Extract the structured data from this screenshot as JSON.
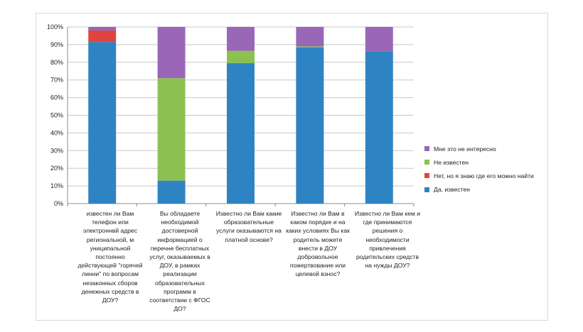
{
  "chart_data": {
    "type": "bar",
    "stacked": true,
    "percent": true,
    "categories": [
      "известен ли Вам телефон или электроннвй адрес региональной, м униципальной постоянно действующей \"горячей линии\" по вопросам незаконных сборов денежных средств в ДОУ?",
      "Вы обладаете необходимой достоверной информацией о перечне бесплатных услуг, оказываемых в ДОУ, в рамках реализации образовательных программ в соответствии с ФГОС ДО?",
      "Известно ли Вам какие образовательные услуги оказываются на платной основе?",
      "Известно ли Вам в каком порядке и на каких условиях Вы как родитель можете внести в ДОУ добровольное пожертвование или целевой взнос?",
      "Известно ли Вам кем и где принимаются решения о необходимости привлечения родительских средств на нужды ДОУ?"
    ],
    "series": [
      {
        "name": "Да, известен",
        "color": "#2e83c3",
        "values": [
          91.5,
          13,
          79.5,
          88.5,
          86
        ]
      },
      {
        "name": "Нет, но я знаю  где его можно найти",
        "color": "#e0443e",
        "values": [
          6.5,
          0,
          0,
          0,
          0
        ]
      },
      {
        "name": "Не известен",
        "color": "#8cc152",
        "values": [
          0,
          58,
          7,
          0.5,
          0
        ]
      },
      {
        "name": "Мне это не интересно",
        "color": "#9966b8",
        "values": [
          2,
          29,
          13.5,
          11,
          14
        ]
      }
    ],
    "ylim": [
      0,
      100
    ],
    "yticks": [
      "0%",
      "10%",
      "20%",
      "30%",
      "40%",
      "50%",
      "60%",
      "70%",
      "80%",
      "90%",
      "100%"
    ],
    "grid": true,
    "legend_position": "right"
  },
  "legend": {
    "items": [
      {
        "label": "Мне это не интересно",
        "color": "#9966b8"
      },
      {
        "label": "Не известен",
        "color": "#8cc152"
      },
      {
        "label": "Нет, но я знаю  где его можно найти",
        "color": "#e0443e"
      },
      {
        "label": "Да, известен",
        "color": "#2e83c3"
      }
    ]
  }
}
